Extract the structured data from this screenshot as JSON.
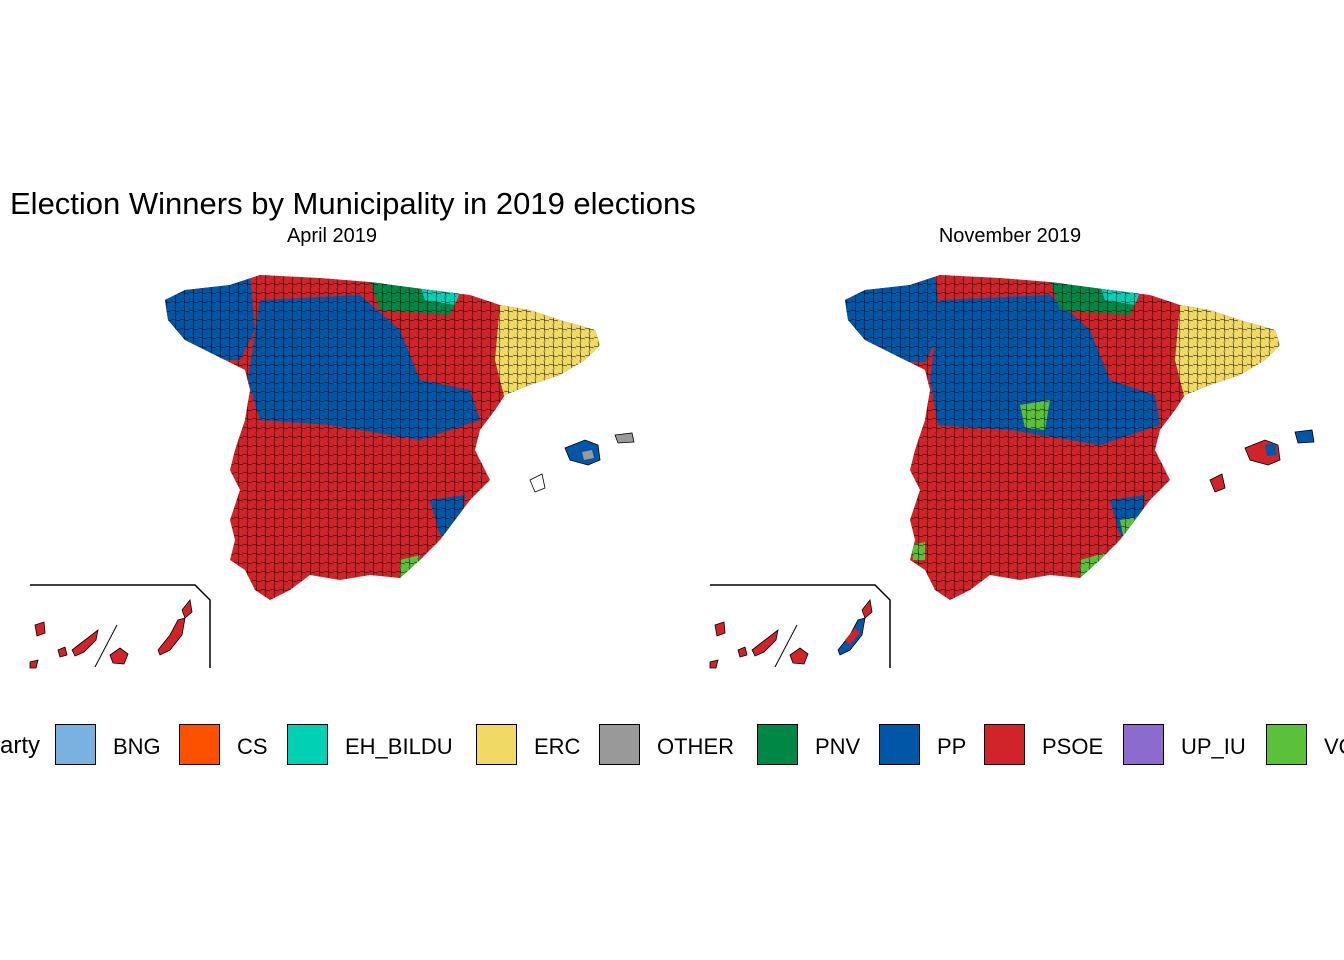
{
  "title": "Election Winners by Municipality in 2019 elections",
  "facets": [
    {
      "label": "April 2019"
    },
    {
      "label": "November 2019"
    }
  ],
  "legend": {
    "title": "Party",
    "items": [
      {
        "label": "BNG",
        "color": "#79b2e0"
      },
      {
        "label": "CS",
        "color": "#fe5100"
      },
      {
        "label": "EH_BILDU",
        "color": "#00d1b5"
      },
      {
        "label": "ERC",
        "color": "#f0d964"
      },
      {
        "label": "OTHER",
        "color": "#999999"
      },
      {
        "label": "PNV",
        "color": "#008745"
      },
      {
        "label": "PP",
        "color": "#0056a7"
      },
      {
        "label": "PSOE",
        "color": "#d0232a"
      },
      {
        "label": "UP_IU",
        "color": "#8c6bce"
      },
      {
        "label": "VOX",
        "color": "#5bc03a"
      }
    ]
  }
}
